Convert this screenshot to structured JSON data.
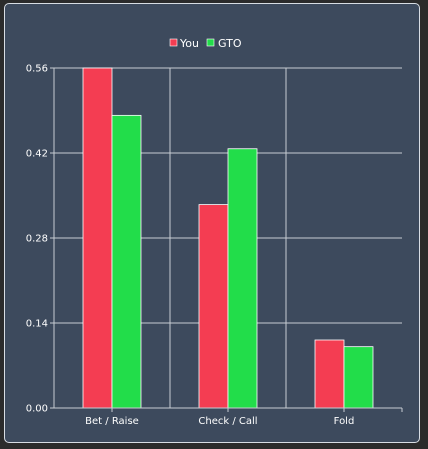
{
  "chart_data": {
    "type": "bar",
    "categories": [
      "Bet / Raise",
      "Check / Call",
      "Fold"
    ],
    "series": [
      {
        "name": "You",
        "values": [
          0.56,
          0.335,
          0.112
        ],
        "color": "#f43d52"
      },
      {
        "name": "GTO",
        "values": [
          0.482,
          0.427,
          0.101
        ],
        "color": "#22dd4a"
      }
    ],
    "yticks": [
      "0.00",
      "0.14",
      "0.28",
      "0.42",
      "0.56"
    ],
    "ylim": [
      0,
      0.56
    ],
    "grid": true,
    "legend_position": "top-center",
    "colors": {
      "background": "#3d4a5d",
      "grid": "#c8ccd2",
      "text": "#ffffff"
    }
  }
}
